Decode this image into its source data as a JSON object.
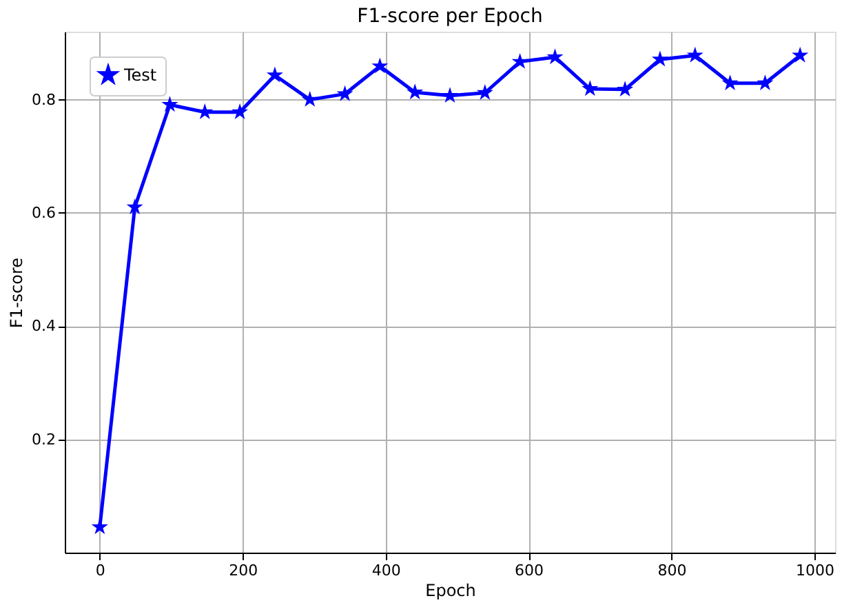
{
  "chart_data": {
    "type": "line",
    "title": "F1-score per Epoch",
    "xlabel": "Epoch",
    "ylabel": "F1-score",
    "x": [
      0,
      49,
      98,
      147,
      196,
      245,
      294,
      343,
      392,
      441,
      490,
      539,
      588,
      637,
      686,
      735,
      784,
      833,
      882,
      931,
      980
    ],
    "series": [
      {
        "name": "Test",
        "color": "#0000ff",
        "values": [
          0.045,
          0.61,
          0.791,
          0.778,
          0.778,
          0.843,
          0.8,
          0.81,
          0.859,
          0.813,
          0.807,
          0.812,
          0.867,
          0.875,
          0.819,
          0.818,
          0.871,
          0.878,
          0.829,
          0.829,
          0.878
        ]
      }
    ],
    "xlim": [
      -49,
      1029
    ],
    "ylim": [
      0.0,
      0.92
    ],
    "xticks": [
      0,
      200,
      400,
      600,
      800,
      1000
    ],
    "yticks": [
      0.2,
      0.4,
      0.6,
      0.8
    ],
    "grid": true,
    "legend": "top left",
    "marker": "star",
    "line_style": "solid"
  }
}
